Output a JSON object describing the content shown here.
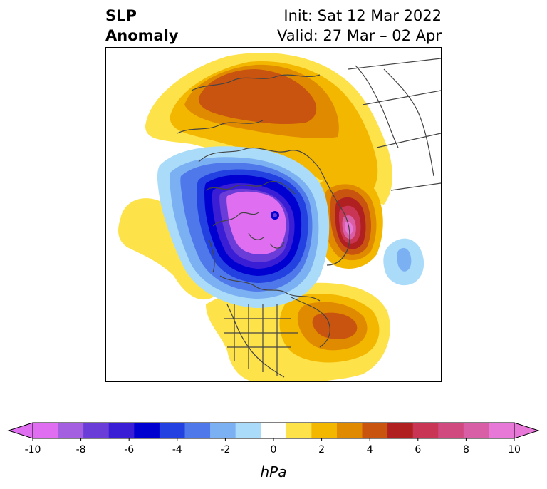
{
  "title": {
    "left_line1": "SLP",
    "left_line2": "Anomaly",
    "init": "Init: Sat 12 Mar 2022",
    "valid": "Valid: 27 Mar – 02 Apr"
  },
  "colorbar": {
    "unit": "hPa",
    "ticks": [
      "-10",
      "-8",
      "-6",
      "-4",
      "-2",
      "0",
      "2",
      "4",
      "6",
      "8",
      "10"
    ],
    "bins": [
      "#df6ff0",
      "#a45ee0",
      "#6a3cd8",
      "#3a1ed6",
      "#0000d0",
      "#2340e0",
      "#4f78ea",
      "#7bb0f2",
      "#aadcfa",
      "#ffffff",
      "#fde24a",
      "#f3b700",
      "#e08a00",
      "#c95410",
      "#b02020",
      "#c93555",
      "#d04a7f",
      "#d85fa5",
      "#e878d8"
    ],
    "extend_low_color": "#df6ff0",
    "extend_high_color": "#e878d8"
  },
  "map": {
    "colors": {
      "coast": "#444444",
      "neg10": "#df6ff0",
      "neg8": "#a45ee0",
      "neg7": "#6a3cd8",
      "neg6": "#3a1ed6",
      "neg5": "#0000d0",
      "neg4": "#2340e0",
      "neg3": "#4f78ea",
      "neg2": "#7bb0f2",
      "neg1": "#aadcfa",
      "pos1": "#fde24a",
      "pos2": "#f3b700",
      "pos3": "#e08a00",
      "pos4": "#c95410",
      "pos5": "#b02020",
      "pos6": "#c93555",
      "pos7": "#d04a7f",
      "pos8": "#d85fa5",
      "pos9": "#e878d8"
    }
  }
}
